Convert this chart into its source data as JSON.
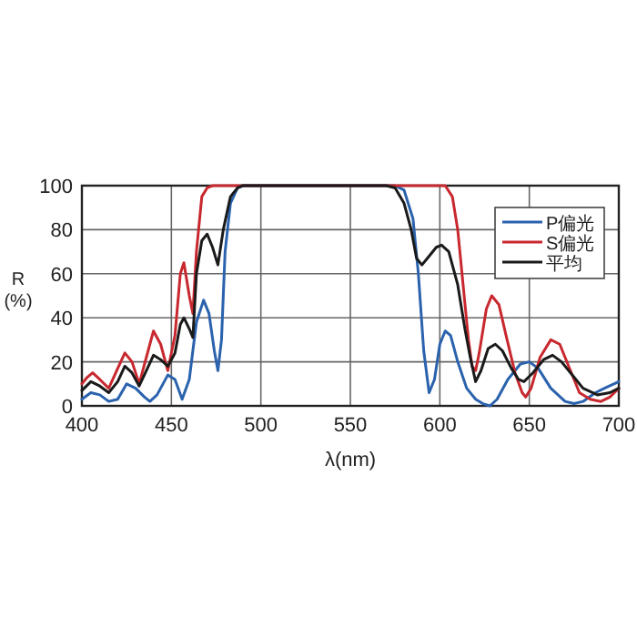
{
  "chart_data": {
    "type": "line",
    "xlabel": "λ(nm)",
    "ylabel": "R\n(%)",
    "xlim": [
      400,
      700
    ],
    "ylim": [
      0,
      100
    ],
    "xticks": [
      400,
      450,
      500,
      550,
      600,
      650,
      700
    ],
    "yticks": [
      0,
      20,
      40,
      60,
      80,
      100
    ],
    "grid": true,
    "legend": "top right",
    "marker": "none",
    "line_style": "solid",
    "series": [
      {
        "name": "P偏光",
        "color": "#2a62ad",
        "x": [
          400,
          405,
          410,
          415,
          420,
          425,
          430,
          435,
          438,
          442,
          448,
          452,
          456,
          460,
          464,
          468,
          471,
          474,
          476,
          478,
          480,
          483,
          487,
          490,
          575,
          580,
          585,
          588,
          591,
          594,
          597,
          600,
          603,
          606,
          610,
          615,
          620,
          624,
          628,
          632,
          638,
          645,
          650,
          655,
          662,
          670,
          675,
          680,
          687,
          692,
          700
        ],
        "values": [
          3,
          6,
          5,
          2,
          3,
          10,
          8,
          4,
          2,
          5,
          14,
          12,
          3,
          12,
          38,
          48,
          42,
          25,
          16,
          30,
          70,
          92,
          99,
          100,
          100,
          98,
          85,
          60,
          25,
          6,
          12,
          28,
          34,
          32,
          20,
          8,
          3,
          1,
          0,
          3,
          12,
          19,
          20,
          17,
          8,
          2,
          1,
          2,
          6,
          8,
          11
        ]
      },
      {
        "name": "S偏光",
        "color": "#c8282e",
        "x": [
          400,
          403,
          406,
          410,
          415,
          420,
          424,
          428,
          432,
          436,
          440,
          444,
          448,
          452,
          455,
          457,
          460,
          462,
          464,
          467,
          470,
          473,
          600,
          603,
          607,
          610,
          613,
          616,
          618,
          620,
          622,
          626,
          629,
          633,
          637,
          642,
          646,
          648,
          651,
          656,
          662,
          667,
          672,
          678,
          684,
          690,
          695,
          700
        ],
        "values": [
          10,
          13,
          15,
          12,
          8,
          17,
          24,
          20,
          10,
          22,
          34,
          28,
          16,
          32,
          60,
          65,
          50,
          42,
          70,
          95,
          99,
          100,
          100,
          100,
          95,
          80,
          55,
          30,
          18,
          16,
          24,
          44,
          50,
          46,
          32,
          15,
          6,
          4,
          8,
          22,
          30,
          28,
          18,
          6,
          3,
          2,
          4,
          8
        ]
      },
      {
        "name": "平均",
        "color": "#1a1a1a",
        "x": [
          400,
          405,
          410,
          415,
          420,
          424,
          428,
          432,
          436,
          440,
          444,
          448,
          452,
          455,
          457,
          460,
          462,
          464,
          467,
          470,
          473,
          476,
          479,
          483,
          487,
          490,
          570,
          575,
          580,
          584,
          587,
          590,
          594,
          598,
          601,
          605,
          610,
          614,
          617,
          620,
          623,
          627,
          631,
          635,
          640,
          644,
          647,
          652,
          658,
          663,
          668,
          675,
          680,
          688,
          695,
          700
        ],
        "values": [
          7,
          11,
          9,
          6,
          11,
          18,
          15,
          9,
          16,
          23,
          21,
          18,
          24,
          37,
          40,
          35,
          31,
          60,
          75,
          78,
          72,
          64,
          80,
          95,
          99,
          100,
          100,
          99,
          92,
          80,
          67,
          64,
          68,
          72,
          73,
          70,
          55,
          35,
          22,
          11,
          16,
          26,
          28,
          25,
          17,
          12,
          11,
          15,
          21,
          23,
          20,
          13,
          8,
          5,
          6,
          8
        ]
      }
    ]
  }
}
